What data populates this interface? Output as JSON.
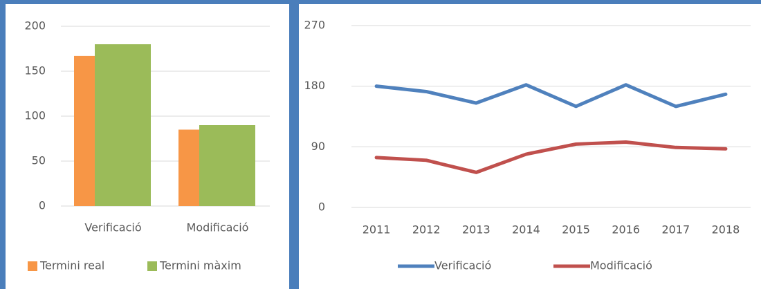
{
  "chart_data": [
    {
      "type": "bar",
      "categories": [
        "Verificació",
        "Modificació"
      ],
      "series": [
        {
          "name": "Termini real",
          "color": "#f79646",
          "values": [
            167,
            85
          ]
        },
        {
          "name": "Termini màxim",
          "color": "#9bbb59",
          "values": [
            180,
            90
          ]
        }
      ],
      "ylim": [
        0,
        200
      ],
      "yticks": [
        0,
        50,
        100,
        150,
        200
      ],
      "grid": true,
      "legend": "bottom"
    },
    {
      "type": "line",
      "categories": [
        "2011",
        "2012",
        "2013",
        "2014",
        "2015",
        "2016",
        "2017",
        "2018"
      ],
      "series": [
        {
          "name": "Verificació",
          "color": "#4f81bd",
          "values": [
            180,
            172,
            155,
            182,
            150,
            182,
            150,
            168
          ]
        },
        {
          "name": "Modificació",
          "color": "#c0504d",
          "values": [
            74,
            70,
            52,
            79,
            94,
            97,
            89,
            87
          ]
        }
      ],
      "ylim": [
        0,
        270
      ],
      "yticks": [
        0,
        90,
        180,
        270
      ],
      "grid": true,
      "legend": "bottom"
    }
  ]
}
